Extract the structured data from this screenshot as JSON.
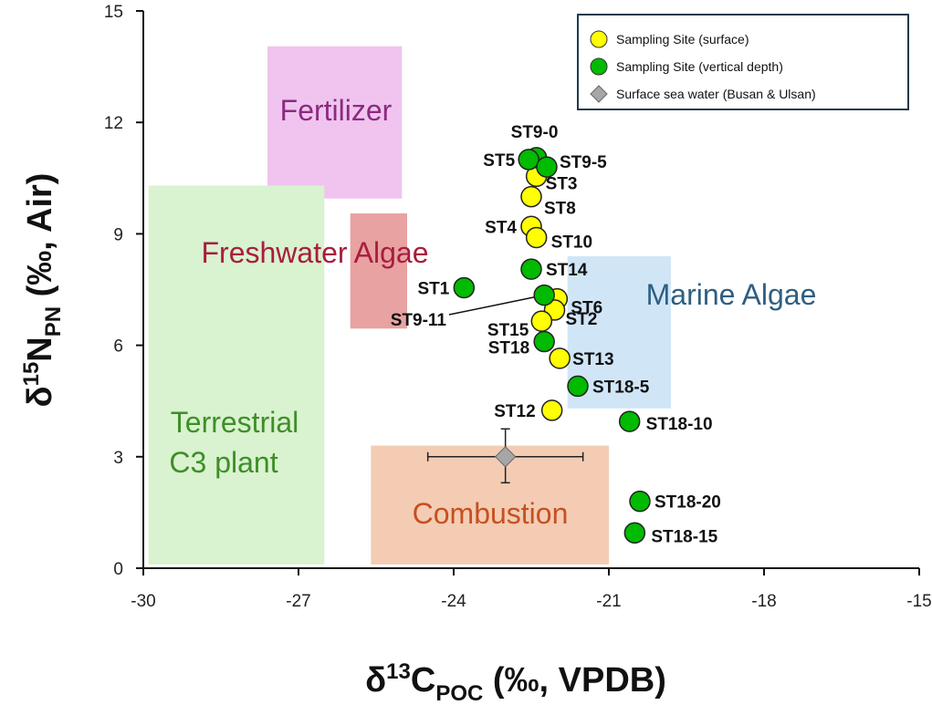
{
  "chart_data": {
    "type": "scatter",
    "xlabel": {
      "base": "δ",
      "sup": "13",
      "main": "C",
      "sub": "POC",
      "rest": " (‰, VPDB)"
    },
    "ylabel": {
      "base": "δ",
      "sup": "15",
      "main": "N",
      "sub": "PN",
      "rest": " (‰, Air)"
    },
    "xlim": [
      -30,
      -15
    ],
    "ylim": [
      0,
      15
    ],
    "xticks": [
      -30,
      -27,
      -24,
      -21,
      -18,
      -15
    ],
    "yticks": [
      0,
      3,
      6,
      9,
      12,
      15
    ],
    "legend": {
      "placement": "top-right",
      "entries": [
        {
          "label": "Sampling Site (surface)",
          "color": "#ffff00",
          "marker": "circle"
        },
        {
          "label": "Sampling Site (vertical depth)",
          "color": "#00bb00",
          "marker": "circle"
        },
        {
          "label": "Surface sea water (Busan & Ulsan)",
          "color": "#a6a6a6",
          "marker": "diamond"
        }
      ]
    },
    "regions": [
      {
        "label": "Fertilizer",
        "x": [
          -27.6,
          -25.0
        ],
        "y": [
          9.95,
          14.05
        ],
        "fill": "#f0c4ee",
        "text_color": "#8b2a82"
      },
      {
        "label": "Freshwater Algae",
        "x": [
          -26.0,
          -24.9
        ],
        "y": [
          6.45,
          9.55
        ],
        "fill": "#e8a2a2",
        "text_color": "#a81d3d"
      },
      {
        "label": "Terrestrial C3 plant",
        "x": [
          -29.9,
          -26.5
        ],
        "y": [
          0.1,
          10.3
        ],
        "fill": "#d9f2cf",
        "text_color": "#3e8e28"
      },
      {
        "label": "Marine Algae",
        "x": [
          -21.8,
          -19.8
        ],
        "y": [
          4.3,
          8.4
        ],
        "fill": "#d0e6f7",
        "text_color": "#2e5f82"
      },
      {
        "label": "Combustion",
        "x": [
          -25.6,
          -21.0
        ],
        "y": [
          0.1,
          3.3
        ],
        "fill": "#f4ccb4",
        "text_color": "#c65020"
      }
    ],
    "series": [
      {
        "name": "Sampling Site (surface)",
        "color": "#ffff00",
        "points": [
          {
            "label": "ST3",
            "x": -22.4,
            "y": 10.55
          },
          {
            "label": "ST8",
            "x": -22.5,
            "y": 10.0
          },
          {
            "label": "ST4",
            "x": -22.5,
            "y": 9.2
          },
          {
            "label": "ST10",
            "x": -22.4,
            "y": 8.9
          },
          {
            "label": "ST6",
            "x": -22.0,
            "y": 7.25
          },
          {
            "label": "ST2",
            "x": -22.05,
            "y": 6.95
          },
          {
            "label": "ST15",
            "x": -22.3,
            "y": 6.65
          },
          {
            "label": "ST13",
            "x": -21.95,
            "y": 5.65
          },
          {
            "label": "ST12",
            "x": -22.1,
            "y": 4.25
          }
        ]
      },
      {
        "name": "Sampling Site (vertical depth)",
        "color": "#00bb00",
        "points": [
          {
            "label": "ST9-0",
            "x": -22.4,
            "y": 11.05
          },
          {
            "label": "ST5",
            "x": -22.55,
            "y": 11.0
          },
          {
            "label": "ST9-5",
            "x": -22.2,
            "y": 10.8
          },
          {
            "label": "ST14",
            "x": -22.5,
            "y": 8.05
          },
          {
            "label": "ST1",
            "x": -23.8,
            "y": 7.55
          },
          {
            "label": "ST9-11",
            "x": -22.25,
            "y": 7.35
          },
          {
            "label": "ST18",
            "x": -22.25,
            "y": 6.1
          },
          {
            "label": "ST18-5",
            "x": -21.6,
            "y": 4.9
          },
          {
            "label": "ST18-10",
            "x": -20.6,
            "y": 3.95
          },
          {
            "label": "ST18-20",
            "x": -20.4,
            "y": 1.8
          },
          {
            "label": "ST18-15",
            "x": -20.5,
            "y": 0.95
          }
        ]
      },
      {
        "name": "Surface sea water (Busan & Ulsan)",
        "color": "#a6a6a6",
        "points": [
          {
            "label": "",
            "x": -23.0,
            "y": 3.0,
            "x_err": 1.5,
            "y_err_up": 0.75,
            "y_err_down": 0.7
          }
        ]
      }
    ]
  }
}
